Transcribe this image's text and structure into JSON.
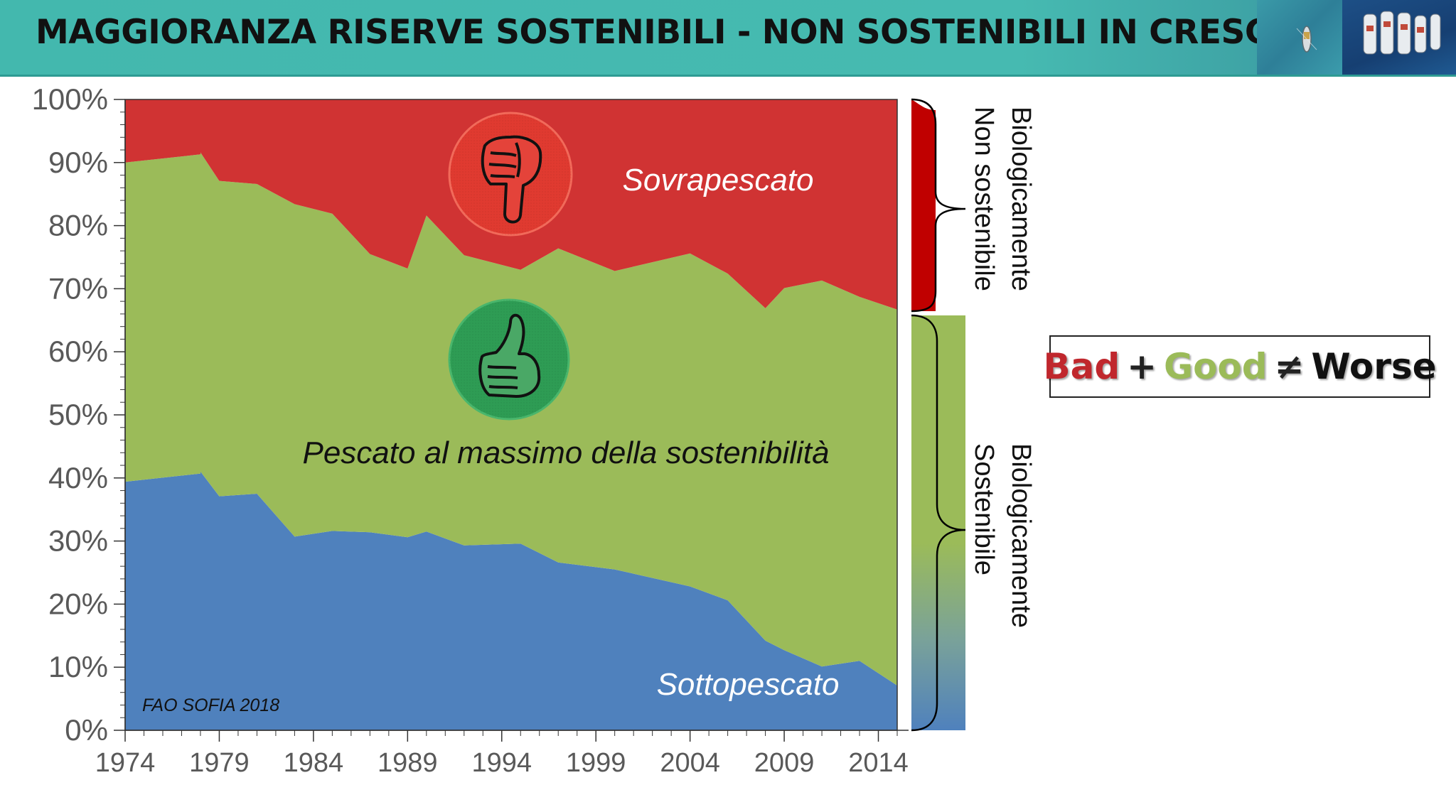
{
  "header": {
    "title": "MAGGIORANZA RISERVE SOSTENIBILI -  NON SOSTENIBILI IN CRESCITA"
  },
  "brace_labels": {
    "unsustainable": [
      "Biologicamente",
      "Non sostenibile"
    ],
    "sustainable": [
      "Biologicamente",
      "Sostenibile"
    ]
  },
  "formula": {
    "bad": "Bad",
    "plus": "+",
    "good": "Good",
    "neq": "≠",
    "worse": "Worse"
  },
  "colors": {
    "overfished": "#d03333",
    "max_sustainable": "#9bbb59",
    "underfished": "#4f81bd",
    "header_teal": "#46bab1",
    "thumbs_up_bg": "#2e9c54",
    "thumbs_down_bg": "#d9332e"
  },
  "chart_data": {
    "type": "area",
    "stacked": true,
    "normalized": true,
    "source_note": "FAO SOFIA 2018",
    "x_ticks": [
      "1974",
      "1979",
      "1984",
      "1989",
      "1994",
      "1999",
      "2004",
      "2009",
      "2014"
    ],
    "y_ticks": [
      "0%",
      "10%",
      "20%",
      "30%",
      "40%",
      "50%",
      "60%",
      "70%",
      "80%",
      "90%",
      "100%"
    ],
    "ylim": [
      0,
      100
    ],
    "xlim": [
      1974,
      2015
    ],
    "x": [
      1974,
      1978,
      1978,
      1979,
      1981,
      1983,
      1985,
      1987,
      1989,
      1990,
      1992,
      1995,
      1997,
      2000,
      2004,
      2006,
      2008,
      2009,
      2011,
      2013,
      2015
    ],
    "series": [
      {
        "name": "Sottopescato",
        "icon": "none",
        "values": [
          39.4,
          40.7,
          41.0,
          37.1,
          37.5,
          30.7,
          31.6,
          31.4,
          30.6,
          31.5,
          29.3,
          29.6,
          26.6,
          25.5,
          22.8,
          20.6,
          14.2,
          12.7,
          10.1,
          11.0,
          7.1
        ]
      },
      {
        "name": "Pescato al massimo della sostenibilità",
        "icon": "thumbs-up-icon",
        "values": [
          50.6,
          50.6,
          50.6,
          50.0,
          49.1,
          52.7,
          50.3,
          44.1,
          42.6,
          50.1,
          46.0,
          43.4,
          49.8,
          47.3,
          52.8,
          51.8,
          52.7,
          57.4,
          61.2,
          57.7,
          59.6
        ]
      },
      {
        "name": "Sovrapescato",
        "icon": "thumbs-down-icon",
        "values": [
          10.0,
          8.7,
          8.4,
          12.9,
          13.4,
          16.6,
          18.1,
          24.5,
          26.8,
          18.4,
          24.7,
          27.0,
          23.6,
          27.2,
          24.4,
          27.6,
          33.1,
          29.9,
          28.7,
          31.3,
          33.3
        ]
      }
    ]
  }
}
